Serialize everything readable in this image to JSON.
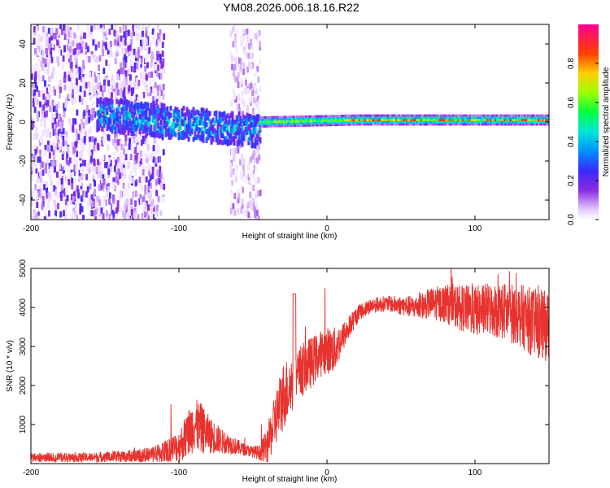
{
  "figure": {
    "title": "YM08.2026.006.18.16.R22"
  },
  "chart_data": [
    {
      "type": "heatmap",
      "title": "YM08.2026.006.18.16.R22",
      "xlabel": "Height of straight line (km)",
      "ylabel": "Frequency (Hz)",
      "xlim": [
        -200,
        150
      ],
      "ylim": [
        -50,
        50
      ],
      "xticks": [
        -200,
        -100,
        0,
        100
      ],
      "yticks": [
        -40,
        -20,
        0,
        20,
        40
      ],
      "colorbar": {
        "label": "Normalized spectral amplitude",
        "range": [
          0,
          1
        ],
        "ticks": [
          0.0,
          0.2,
          0.4,
          0.6,
          0.8
        ],
        "tick_labels": [
          "0.0",
          "0.2",
          "0.4",
          "0.6",
          "0.8"
        ]
      },
      "regions": [
        {
          "name": "noise-scatter",
          "x": [
            -200,
            -110
          ],
          "freq_spread": [
            -50,
            50
          ],
          "amplitude": [
            0.02,
            0.25
          ]
        },
        {
          "name": "noise-scatter-2",
          "x": [
            -65,
            -45
          ],
          "freq_spread": [
            -50,
            50
          ],
          "amplitude": [
            0.02,
            0.12
          ]
        },
        {
          "name": "broad-echo",
          "x": [
            -155,
            -45
          ],
          "center_freq": [
            4,
            -5
          ],
          "width_hz": 8,
          "amplitude": [
            0.15,
            0.55
          ]
        },
        {
          "name": "narrow-line",
          "x": [
            -45,
            150
          ],
          "center_freq": [
            0,
            1
          ],
          "width_hz": 3,
          "amplitude": [
            0.45,
            0.95
          ]
        }
      ]
    },
    {
      "type": "line",
      "xlabel": "Height of straight line (km)",
      "ylabel": "SNR (10 * v/v)",
      "xlim": [
        -200,
        150
      ],
      "ylim": [
        0,
        5000
      ],
      "xticks": [
        -200,
        -100,
        0,
        100
      ],
      "yticks": [
        1000,
        2000,
        3000,
        4000,
        5000
      ],
      "color": "#e8322e",
      "series": [
        {
          "name": "SNR",
          "x": [
            -200,
            -180,
            -160,
            -140,
            -120,
            -110,
            -100,
            -95,
            -90,
            -85,
            -80,
            -75,
            -70,
            -65,
            -60,
            -55,
            -50,
            -45,
            -40,
            -35,
            -30,
            -25,
            -20,
            -15,
            -10,
            -5,
            0,
            5,
            10,
            15,
            20,
            25,
            30,
            40,
            50,
            60,
            70,
            80,
            90,
            100,
            110,
            120,
            130,
            140,
            150
          ],
          "values": [
            150,
            150,
            160,
            180,
            220,
            300,
            450,
            700,
            1000,
            900,
            750,
            650,
            550,
            500,
            420,
            350,
            300,
            280,
            500,
            1100,
            1700,
            2000,
            2200,
            2500,
            2600,
            2800,
            2900,
            2900,
            3200,
            3500,
            3800,
            3950,
            4050,
            4100,
            4050,
            4000,
            4100,
            4100,
            4000,
            3900,
            3950,
            3900,
            3800,
            3600,
            3500
          ]
        }
      ],
      "noise_amplitude": [
        120,
        120,
        120,
        150,
        200,
        300,
        400,
        600,
        700,
        650,
        500,
        400,
        300,
        250,
        200,
        150,
        150,
        200,
        500,
        700,
        900,
        800,
        700,
        700,
        650,
        600,
        600,
        600,
        400,
        300,
        250,
        200,
        200,
        200,
        250,
        300,
        400,
        500,
        600,
        650,
        700,
        750,
        800,
        900,
        900
      ]
    }
  ]
}
